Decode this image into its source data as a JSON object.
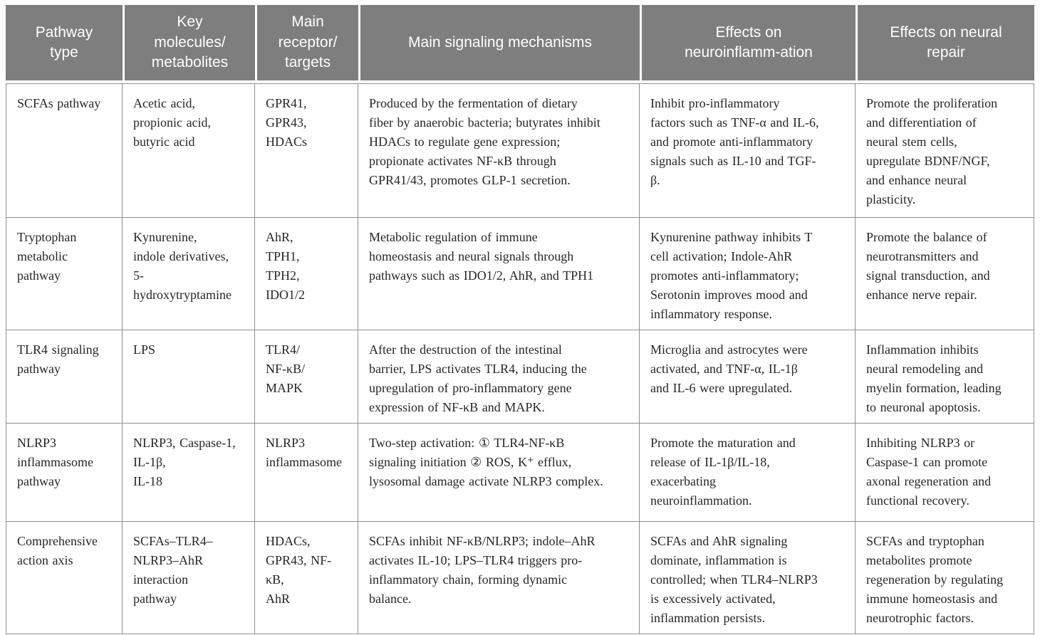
{
  "table": {
    "style": {
      "header_bg": "#7e7e7e",
      "header_text": "#ffffff",
      "body_text": "#262626",
      "border": "#8f8f8f"
    },
    "columns": [
      "Pathway\ntype",
      "Key\nmolecules/\nmetabolites",
      "Main\nreceptor/\ntargets",
      "Main signaling mechanisms",
      "Effects on\nneuroinflamm-ation",
      "Effects on neural\nrepair"
    ],
    "rows": [
      {
        "cells": [
          "SCFAs pathway",
          "Acetic acid,\npropionic acid,\nbutyric acid",
          "GPR41,\nGPR43,\nHDACs",
          "Produced by the fermentation of dietary\nfiber by anaerobic bacteria; butyrates inhibit\nHDACs to regulate gene expression;\npropionate activates NF-κB through\nGPR41/43, promotes GLP-1 secretion.",
          "Inhibit pro-inflammatory\nfactors such as TNF-α and IL-6,\nand promote anti-inflammatory\nsignals such as IL-10 and TGF-\nβ.",
          "Promote the proliferation\nand differentiation of\nneural stem cells,\nupregulate BDNF/NGF,\nand enhance neural\nplasticity."
        ]
      },
      {
        "cells": [
          "Tryptophan\nmetabolic\npathway",
          "Kynurenine,\nindole derivatives,\n5-\nhydroxytryptamine",
          "AhR,\nTPH1,\nTPH2,\nIDO1/2",
          "Metabolic regulation of immune\nhomeostasis and neural signals through\npathways such as IDO1/2, AhR, and TPH1",
          "Kynurenine pathway inhibits T\ncell activation; Indole-AhR\npromotes anti-inflammatory;\nSerotonin improves mood and\ninflammatory response.",
          "Promote the balance of\nneurotransmitters and\nsignal transduction, and\nenhance nerve repair."
        ]
      },
      {
        "cells": [
          "TLR4 signaling\npathway",
          "LPS",
          "TLR4/\nNF-κB/\nMAPK",
          "After the destruction of the intestinal\nbarrier, LPS activates TLR4, inducing the\nupregulation of pro-inflammatory gene\nexpression of NF-κB and MAPK.",
          "Microglia and astrocytes were\nactivated, and TNF-α, IL-1β\nand IL-6 were upregulated.",
          "Inflammation inhibits\nneural remodeling and\nmyelin formation, leading\nto neuronal apoptosis."
        ]
      },
      {
        "cells": [
          "NLRP3\ninflammasome\npathway",
          "NLRP3, Caspase-1,\nIL-1β,\nIL-18",
          "NLRP3\ninflammasome",
          "Two-step activation: ① TLR4-NF-κB\nsignaling initiation ② ROS, K⁺ efflux,\nlysosomal damage activate NLRP3 complex.",
          "Promote the maturation and\nrelease of IL-1β/IL-18,\nexacerbating\nneuroinflammation.",
          "Inhibiting NLRP3 or\nCaspase-1 can promote\naxonal regeneration and\nfunctional recovery."
        ]
      },
      {
        "cells": [
          "Comprehensive\naction axis",
          "SCFAs–TLR4–\nNLRP3–AhR\ninteraction\npathway",
          "HDACs,\nGPR43, NF-\nκB,\nAhR",
          "SCFAs inhibit NF-κB/NLRP3; indole–AhR\nactivates IL-10; LPS–TLR4 triggers pro-\ninflammatory chain, forming dynamic\nbalance.",
          "SCFAs and AhR signaling\ndominate, inflammation is\ncontrolled; when TLR4–NLRP3\nis excessively activated,\ninflammation persists.",
          "SCFAs and tryptophan\nmetabolites promote\nregeneration by regulating\nimmune homeostasis and\nneurotrophic factors."
        ]
      }
    ]
  }
}
